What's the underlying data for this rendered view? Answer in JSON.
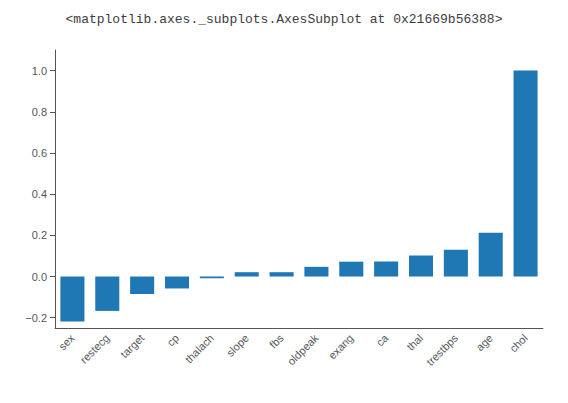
{
  "chart_data": {
    "type": "bar",
    "title": "<matplotlib.axes._subplots.AxesSubplot at 0x21669b56388>",
    "categories": [
      "sex",
      "restecg",
      "target",
      "cp",
      "thalach",
      "slope",
      "fbs",
      "oldpeak",
      "exang",
      "ca",
      "thal",
      "trestbps",
      "age",
      "chol"
    ],
    "values": [
      -0.218,
      -0.167,
      -0.085,
      -0.058,
      -0.009,
      0.021,
      0.021,
      0.047,
      0.072,
      0.073,
      0.102,
      0.13,
      0.213,
      1.0
    ],
    "color": "#1f77b4",
    "ylim": [
      -0.25,
      1.1
    ],
    "yticks": [
      {
        "value": -0.2,
        "label": "−0.2"
      },
      {
        "value": 0.0,
        "label": "0.0"
      },
      0.2,
      0.4,
      0.6,
      0.8,
      {
        "value": 1.0,
        "label": "1.0"
      }
    ],
    "grid": false
  }
}
